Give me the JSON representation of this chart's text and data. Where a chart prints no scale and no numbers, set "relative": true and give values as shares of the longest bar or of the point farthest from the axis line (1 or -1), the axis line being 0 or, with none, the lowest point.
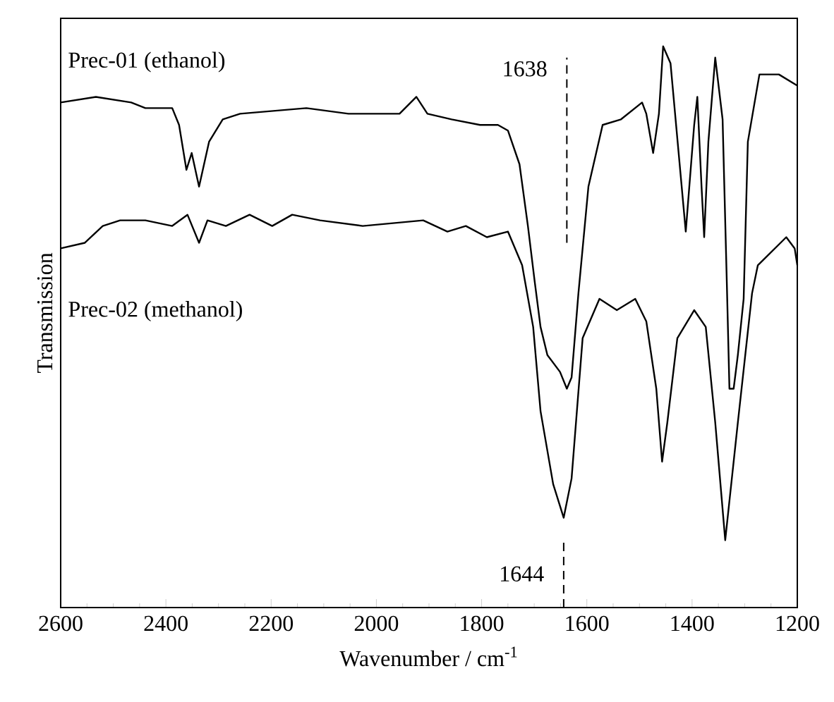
{
  "chart_data": {
    "type": "line",
    "relative": true,
    "xlabel": "Wavenumber / cm$^{-1}$",
    "ylabel": "Transmission",
    "xlim": [
      2600,
      1200
    ],
    "xticks": [
      2600,
      2400,
      2200,
      2000,
      1800,
      1600,
      1400,
      1200
    ],
    "legend": false,
    "grid": false,
    "marker": "none",
    "line_style": "solid",
    "ref_lines": [
      {
        "axis": "x",
        "value": 1638,
        "label": "1638",
        "line_style": "dashed"
      },
      {
        "axis": "x",
        "value": 1644,
        "label": "1644",
        "line_style": "dashed"
      }
    ],
    "series": [
      {
        "name": "Prec-01 (ethanol)",
        "color": "#000000",
        "x": [
          2600,
          2533,
          2466,
          2439,
          2388,
          2375,
          2361,
          2351,
          2337,
          2318,
          2292,
          2259,
          2133,
          2053,
          1956,
          1924,
          1903,
          1857,
          1803,
          1769,
          1750,
          1728,
          1712,
          1699,
          1688,
          1675,
          1651,
          1638,
          1629,
          1616,
          1597,
          1570,
          1535,
          1495,
          1487,
          1474,
          1463,
          1455,
          1441,
          1412,
          1396,
          1390,
          1382,
          1377,
          1369,
          1356,
          1342,
          1334,
          1329,
          1321,
          1313,
          1302,
          1294,
          1272,
          1235,
          1200
        ],
        "values": [
          0.9,
          0.91,
          0.9,
          0.89,
          0.89,
          0.86,
          0.78,
          0.81,
          0.75,
          0.83,
          0.87,
          0.88,
          0.89,
          0.88,
          0.88,
          0.91,
          0.88,
          0.87,
          0.86,
          0.86,
          0.85,
          0.79,
          0.68,
          0.58,
          0.5,
          0.45,
          0.42,
          0.39,
          0.41,
          0.56,
          0.75,
          0.86,
          0.87,
          0.9,
          0.88,
          0.81,
          0.88,
          1.0,
          0.97,
          0.67,
          0.86,
          0.91,
          0.75,
          0.66,
          0.83,
          0.98,
          0.87,
          0.58,
          0.39,
          0.39,
          0.45,
          0.55,
          0.83,
          0.95,
          0.95,
          0.93
        ]
      },
      {
        "name": "Prec-02 (methanol)",
        "color": "#000000",
        "x": [
          2600,
          2554,
          2520,
          2487,
          2439,
          2388,
          2359,
          2337,
          2321,
          2286,
          2241,
          2198,
          2160,
          2107,
          2026,
          1911,
          1865,
          1830,
          1790,
          1750,
          1723,
          1702,
          1688,
          1664,
          1644,
          1629,
          1608,
          1576,
          1543,
          1508,
          1487,
          1468,
          1457,
          1447,
          1428,
          1396,
          1374,
          1356,
          1337,
          1313,
          1286,
          1275,
          1221,
          1205,
          1200
        ],
        "values": [
          0.64,
          0.65,
          0.68,
          0.69,
          0.69,
          0.68,
          0.7,
          0.65,
          0.69,
          0.68,
          0.7,
          0.68,
          0.7,
          0.69,
          0.68,
          0.69,
          0.67,
          0.68,
          0.66,
          0.67,
          0.61,
          0.5,
          0.35,
          0.22,
          0.16,
          0.23,
          0.48,
          0.55,
          0.53,
          0.55,
          0.51,
          0.39,
          0.26,
          0.33,
          0.48,
          0.53,
          0.5,
          0.33,
          0.12,
          0.33,
          0.56,
          0.61,
          0.66,
          0.64,
          0.61
        ]
      }
    ]
  }
}
